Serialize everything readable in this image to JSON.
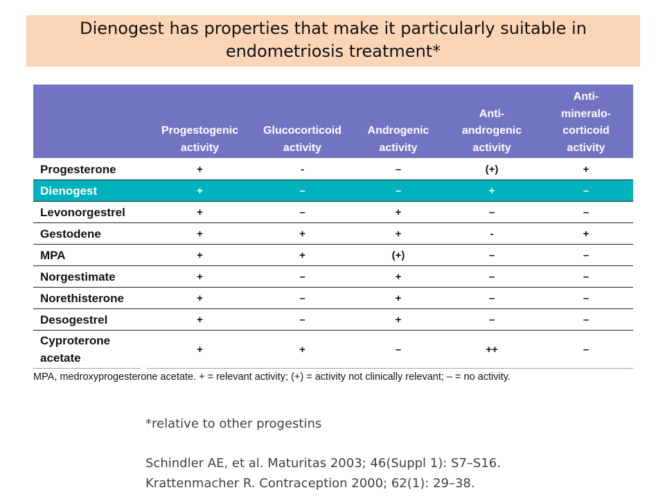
{
  "header": {
    "title": "Dienogest has properties that make it particularly suitable in endometriosis treatment*"
  },
  "table": {
    "columns": [
      [
        "Progestogenic",
        "activity"
      ],
      [
        "Glucocorticoid",
        "activity"
      ],
      [
        "Androgenic",
        "activity"
      ],
      [
        "Anti-",
        "androgenic",
        "activity"
      ],
      [
        "Anti-",
        "mineralo-",
        "corticoid",
        "activity"
      ]
    ],
    "rows": [
      {
        "name": "Progesterone",
        "cells": [
          "+",
          "-",
          "–",
          "(+)",
          "+"
        ]
      },
      {
        "name": "Dienogest",
        "cells": [
          "+",
          "–",
          "–",
          "+",
          "–"
        ]
      },
      {
        "name": "Levonorgestrel",
        "cells": [
          "+",
          "–",
          "+",
          "–",
          "–"
        ]
      },
      {
        "name": "Gestodene",
        "cells": [
          "+",
          "+",
          "+",
          "-",
          "+"
        ]
      },
      {
        "name": "MPA",
        "cells": [
          "+",
          "+",
          "(+)",
          "–",
          "–"
        ]
      },
      {
        "name": "Norgestimate",
        "cells": [
          "+",
          "–",
          "+",
          "–",
          "–"
        ]
      },
      {
        "name": "Norethisterone",
        "cells": [
          "+",
          "–",
          "+",
          "–",
          "–"
        ]
      },
      {
        "name": "Desogestrel",
        "cells": [
          "+",
          "–",
          "+",
          "–",
          "–"
        ]
      },
      {
        "name": "Cyproterone acetate",
        "cells": [
          "+",
          "+",
          "–",
          "++",
          "–"
        ]
      }
    ],
    "footnote": "MPA, medroxyprogesterone acetate. + = relevant activity; (+) = activity not clinically relevant; – = no activity."
  },
  "notes": {
    "relative": "*relative to other progestins",
    "references": [
      "Schindler AE, et al. Maturitas 2003; 46(Suppl 1): S7–S16.",
      "Krattenmacher R. Contraception 2000; 62(1): 29–38."
    ]
  }
}
